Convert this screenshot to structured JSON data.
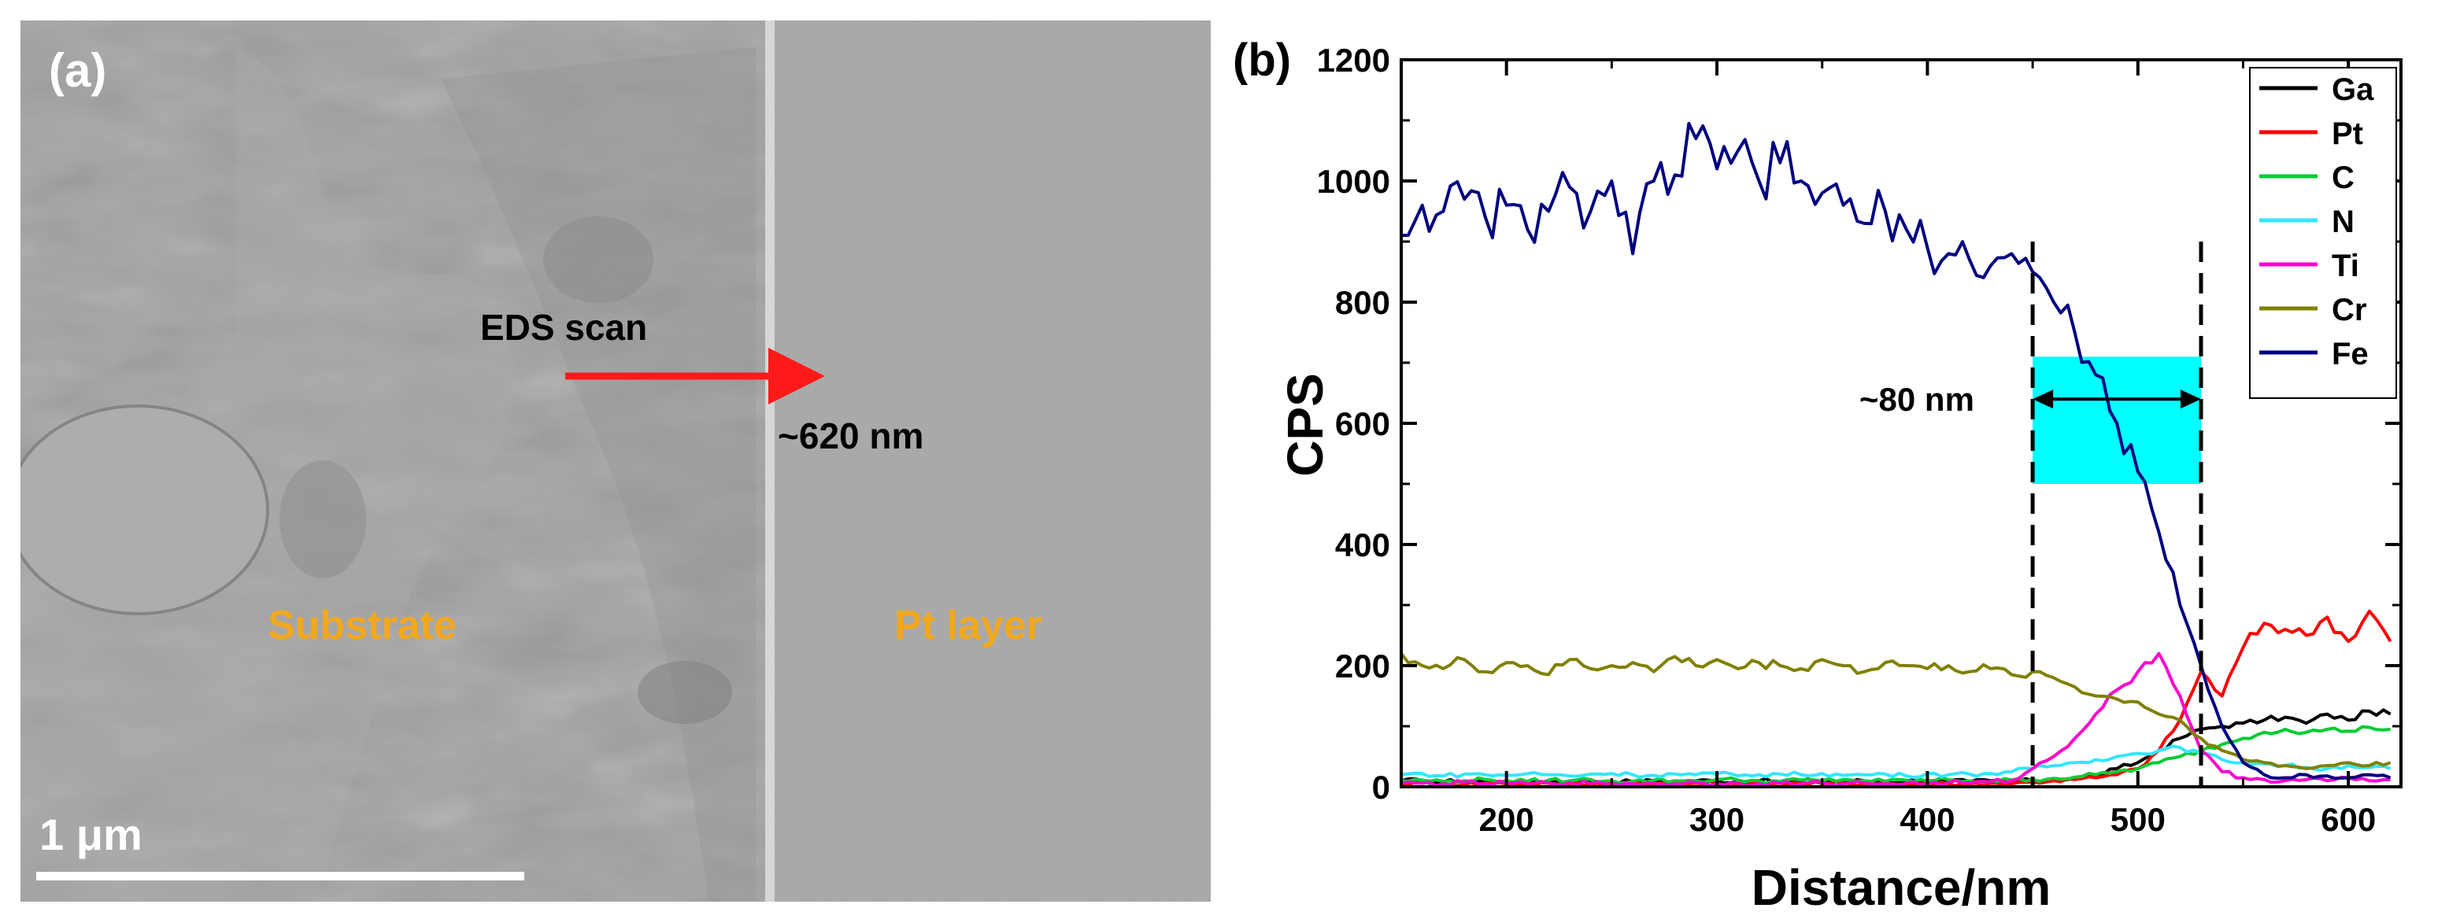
{
  "panel_a": {
    "label": "(a)",
    "scan_label": "EDS scan",
    "scan_length": "~620 nm",
    "region_left": "Substrate",
    "region_right": "Pt layer",
    "scale_bar_label": "1 μm",
    "label_color": "#f2a81d",
    "arrow_color": "#ff1a1a"
  },
  "chart_data": {
    "panel_label": "(b)",
    "type": "line",
    "xlabel": "Distance/nm",
    "ylabel": "CPS",
    "xlim": [
      150,
      625
    ],
    "ylim": [
      0,
      1200
    ],
    "xticks": [
      200,
      300,
      400,
      500,
      600
    ],
    "yticks": [
      0,
      200,
      400,
      600,
      800,
      1000,
      1200
    ],
    "legend_position": "top-right",
    "x": [
      150,
      160,
      170,
      180,
      190,
      200,
      210,
      220,
      230,
      240,
      250,
      260,
      270,
      280,
      290,
      300,
      310,
      320,
      330,
      340,
      350,
      360,
      370,
      380,
      390,
      400,
      410,
      420,
      430,
      440,
      450,
      460,
      470,
      480,
      490,
      500,
      510,
      520,
      530,
      540,
      550,
      560,
      570,
      580,
      590,
      600,
      610,
      620
    ],
    "series": [
      {
        "name": "Ga",
        "color": "#000000",
        "values": [
          10,
          10,
          8,
          10,
          9,
          10,
          8,
          10,
          9,
          10,
          10,
          8,
          10,
          9,
          10,
          10,
          9,
          10,
          8,
          10,
          10,
          9,
          10,
          8,
          10,
          9,
          10,
          8,
          10,
          9,
          10,
          12,
          14,
          18,
          30,
          40,
          60,
          80,
          95,
          100,
          105,
          110,
          115,
          105,
          120,
          110,
          125,
          120
        ]
      },
      {
        "name": "Pt",
        "color": "#ff0000",
        "values": [
          5,
          6,
          5,
          4,
          6,
          5,
          5,
          6,
          5,
          4,
          5,
          6,
          5,
          5,
          6,
          5,
          4,
          5,
          6,
          5,
          5,
          6,
          5,
          4,
          5,
          6,
          5,
          5,
          6,
          5,
          8,
          10,
          12,
          15,
          20,
          30,
          60,
          110,
          190,
          150,
          230,
          270,
          260,
          250,
          280,
          240,
          290,
          240
        ]
      },
      {
        "name": "C",
        "color": "#00cc33",
        "values": [
          10,
          11,
          9,
          10,
          12,
          10,
          9,
          11,
          10,
          12,
          10,
          9,
          11,
          10,
          10,
          12,
          11,
          10,
          9,
          11,
          10,
          12,
          10,
          9,
          11,
          10,
          12,
          10,
          9,
          11,
          12,
          14,
          16,
          20,
          25,
          30,
          40,
          50,
          60,
          70,
          80,
          90,
          95,
          90,
          95,
          92,
          98,
          95
        ]
      },
      {
        "name": "N",
        "color": "#33e6ff",
        "values": [
          20,
          22,
          18,
          21,
          20,
          19,
          22,
          20,
          18,
          21,
          22,
          20,
          19,
          21,
          20,
          22,
          18,
          20,
          21,
          20,
          22,
          19,
          20,
          21,
          18,
          22,
          20,
          21,
          22,
          25,
          30,
          35,
          40,
          45,
          50,
          55,
          60,
          65,
          55,
          45,
          40,
          38,
          35,
          32,
          30,
          35,
          32,
          30
        ]
      },
      {
        "name": "Ti",
        "color": "#ff00cc",
        "values": [
          5,
          6,
          5,
          7,
          5,
          6,
          5,
          6,
          7,
          5,
          6,
          5,
          6,
          5,
          7,
          5,
          6,
          5,
          6,
          5,
          7,
          5,
          6,
          5,
          6,
          5,
          7,
          6,
          8,
          10,
          30,
          50,
          80,
          120,
          160,
          190,
          220,
          150,
          60,
          25,
          15,
          12,
          10,
          12,
          10,
          15,
          10,
          12
        ]
      },
      {
        "name": "Cr",
        "color": "#808000",
        "values": [
          220,
          200,
          195,
          210,
          190,
          205,
          200,
          185,
          210,
          195,
          200,
          205,
          190,
          215,
          200,
          210,
          195,
          205,
          200,
          195,
          210,
          200,
          190,
          205,
          200,
          195,
          200,
          190,
          195,
          185,
          190,
          180,
          165,
          150,
          145,
          140,
          120,
          110,
          80,
          60,
          45,
          40,
          35,
          30,
          35,
          40,
          35,
          40
        ]
      },
      {
        "name": "Fe",
        "color": "#000080",
        "values": [
          910,
          960,
          950,
          970,
          940,
          960,
          920,
          950,
          990,
          950,
          1000,
          880,
          1000,
          1010,
          1070,
          1020,
          1050,
          1000,
          1030,
          1000,
          980,
          960,
          930,
          950,
          920,
          890,
          880,
          870,
          860,
          880,
          850,
          800,
          750,
          680,
          600,
          520,
          420,
          300,
          200,
          100,
          40,
          20,
          15,
          20,
          18,
          15,
          20,
          15
        ]
      }
    ],
    "annotation": {
      "label": "~80 nm",
      "x_start": 450,
      "x_end": 530,
      "y_low": 500,
      "y_high": 710,
      "arrow_y": 640,
      "box_color": "#00ffff"
    }
  }
}
